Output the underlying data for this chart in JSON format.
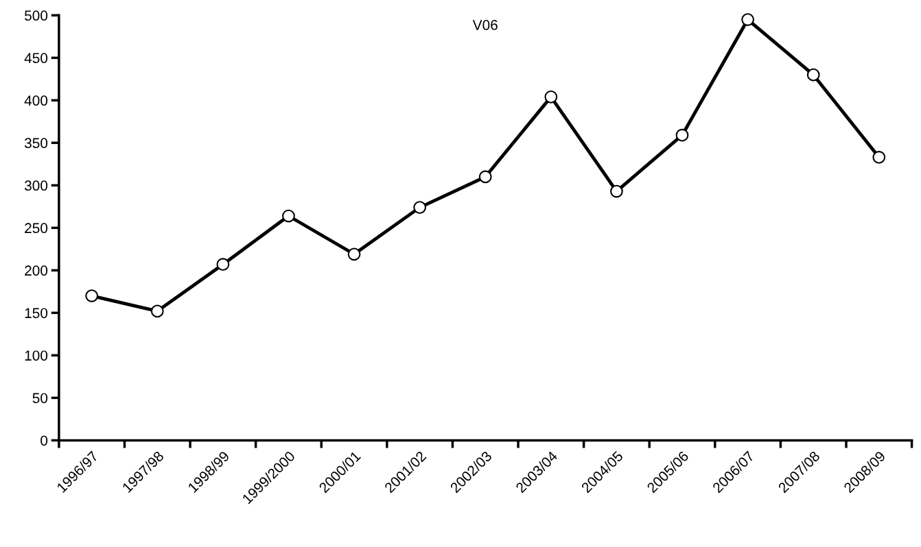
{
  "chart_data": {
    "type": "line",
    "title": "V06",
    "categories": [
      "1996/97",
      "1997/98",
      "1998/99",
      "1999/2000",
      "2000/01",
      "2001/02",
      "2002/03",
      "2003/04",
      "2004/05",
      "2005/06",
      "2006/07",
      "2007/08",
      "2008/09"
    ],
    "series": [
      {
        "color": "#000000",
        "values": [
          170,
          152,
          207,
          264,
          219,
          274,
          310,
          404,
          293,
          359,
          495,
          430,
          333
        ]
      }
    ],
    "ylim": [
      0,
      500
    ],
    "yticks": [
      0,
      50,
      100,
      150,
      200,
      250,
      300,
      350,
      400,
      450,
      500
    ],
    "grid": false,
    "marker": "circle",
    "line_style": "solid"
  }
}
